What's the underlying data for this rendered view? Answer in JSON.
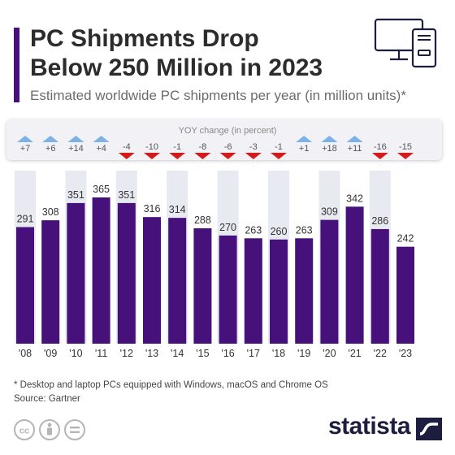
{
  "header": {
    "title_line1": "PC Shipments Drop",
    "title_line2": "Below 250 Million in 2023",
    "subtitle": "Estimated worldwide PC shipments per year (in million units)*"
  },
  "yoy": {
    "title": "YOY change (in percent)",
    "values": [
      7,
      6,
      14,
      4,
      -4,
      -10,
      -1,
      -8,
      -6,
      -3,
      -1,
      1,
      18,
      11,
      -16,
      -15
    ],
    "labels": [
      "+7",
      "+6",
      "+14",
      "+4",
      "-4",
      "-10",
      "-1",
      "-8",
      "-6",
      "-3",
      "-1",
      "+1",
      "+18",
      "+11",
      "-16",
      "-15"
    ],
    "colors": {
      "up": "#7cb2e8",
      "down": "#d41b1b"
    }
  },
  "chart_data": {
    "type": "bar",
    "categories": [
      "'08",
      "'09",
      "'10",
      "'11",
      "'12",
      "'13",
      "'14",
      "'15",
      "'16",
      "'17",
      "'18",
      "'19",
      "'20",
      "'21",
      "'22",
      "'23"
    ],
    "values": [
      291,
      308,
      351,
      365,
      351,
      316,
      314,
      288,
      270,
      263,
      260,
      263,
      309,
      342,
      286,
      242
    ],
    "title": "PC Shipments Drop Below 250 Million in 2023",
    "subtitle": "Estimated worldwide PC shipments per year (in million units)*",
    "ylim": [
      0,
      365
    ],
    "bar_color": "#46117a",
    "column_shading": "#e8eaf2"
  },
  "footer": {
    "footnote": "* Desktop and laptop PCs equipped with Windows, macOS and Chrome OS",
    "source": "Source: Gartner",
    "brand": "statista",
    "cc_icons": [
      "cc-icon",
      "by-icon",
      "nd-icon"
    ]
  }
}
